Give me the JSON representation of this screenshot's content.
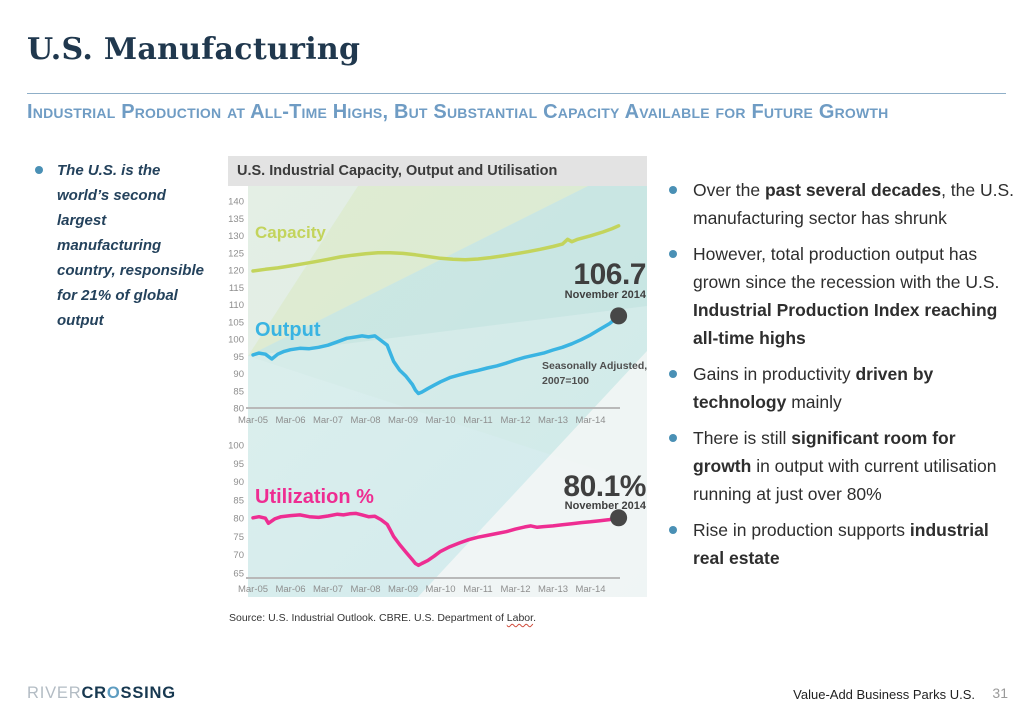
{
  "slide": {
    "title": "U.S. Manufacturing",
    "subtitle": "Industrial Production at All-Time Highs, But Substantial Capacity Available for Future Growth",
    "page_number": "31",
    "footer_right": "Value-Add Business Parks U.S.",
    "logo": {
      "part1": "RIVER",
      "part2a": "CR",
      "part2b": "O",
      "part2c": "SSING"
    },
    "accent_colors": {
      "subtitle_blue": "#6f9cc4",
      "bullet_teal": "#4a90b5",
      "title_navy": "#20384e"
    }
  },
  "left_column": {
    "bullet_text": "The U.S. is the world’s second largest manufacturing country, responsible for 21% of global output"
  },
  "right_column": {
    "bullets": [
      {
        "segments": [
          {
            "text": "Over the ",
            "bold": false
          },
          {
            "text": "past several decades",
            "bold": true
          },
          {
            "text": ", the U.S. manufacturing sector has shrunk",
            "bold": false
          }
        ]
      },
      {
        "segments": [
          {
            "text": "However, total production output has grown since the recession with the U.S. ",
            "bold": false
          },
          {
            "text": "Industrial Production Index reaching all-time highs",
            "bold": true
          }
        ]
      },
      {
        "segments": [
          {
            "text": "Gains in productivity ",
            "bold": false
          },
          {
            "text": "driven by technology",
            "bold": true
          },
          {
            "text": " mainly",
            "bold": false
          }
        ]
      },
      {
        "segments": [
          {
            "text": "There is still ",
            "bold": false
          },
          {
            "text": "significant room for growth",
            "bold": true
          },
          {
            "text": " in output with current utilisation running at just over 80%",
            "bold": false
          }
        ]
      },
      {
        "segments": [
          {
            "text": "Rise in production supports ",
            "bold": false
          },
          {
            "text": "industrial real estate",
            "bold": true
          }
        ]
      }
    ]
  },
  "source": {
    "prefix": "Source: U.S. Industrial Outlook. CBRE. U.S. Department of ",
    "underlined_word": "Labor",
    "suffix": "."
  },
  "chart_data": {
    "type": "line",
    "title": "U.S. Industrial Capacity, Output and Utilisation",
    "x_ticks": [
      "Mar-05",
      "Mar-06",
      "Mar-07",
      "Mar-08",
      "Mar-09",
      "Mar-10",
      "Mar-11",
      "Mar-12",
      "Mar-13",
      "Mar-14"
    ],
    "x_start_year": 2005.17,
    "marker_color": "#474747",
    "top_panel": {
      "ylim": [
        80,
        140
      ],
      "y_ticks": [
        140,
        135,
        130,
        125,
        120,
        115,
        110,
        105,
        100,
        95,
        90,
        85,
        80
      ],
      "note": [
        "Seasonally Adjusted,",
        "2007=100"
      ],
      "callout": {
        "value": "106.7",
        "date": "November 2014"
      },
      "series": [
        {
          "name": "Capacity",
          "color": "#c3d45c",
          "points": [
            [
              2005.17,
              119.7
            ],
            [
              2005.5,
              120.2
            ],
            [
              2005.83,
              120.6
            ],
            [
              2006.17,
              121.2
            ],
            [
              2006.5,
              121.8
            ],
            [
              2006.83,
              122.4
            ],
            [
              2007.17,
              123.1
            ],
            [
              2007.5,
              123.8
            ],
            [
              2007.83,
              124.3
            ],
            [
              2008.17,
              124.7
            ],
            [
              2008.5,
              125.0
            ],
            [
              2008.83,
              125.0
            ],
            [
              2009.17,
              124.8
            ],
            [
              2009.5,
              124.4
            ],
            [
              2009.83,
              123.9
            ],
            [
              2010.17,
              123.4
            ],
            [
              2010.5,
              123.1
            ],
            [
              2010.83,
              123.0
            ],
            [
              2011.17,
              123.2
            ],
            [
              2011.5,
              123.6
            ],
            [
              2011.83,
              124.1
            ],
            [
              2012.17,
              124.7
            ],
            [
              2012.5,
              125.3
            ],
            [
              2012.83,
              126.0
            ],
            [
              2013.17,
              126.8
            ],
            [
              2013.42,
              127.5
            ],
            [
              2013.56,
              128.9
            ],
            [
              2013.67,
              128.2
            ],
            [
              2013.83,
              128.9
            ],
            [
              2014.17,
              129.9
            ],
            [
              2014.5,
              131.0
            ],
            [
              2014.75,
              132.0
            ],
            [
              2014.92,
              132.8
            ]
          ]
        },
        {
          "name": "Output",
          "color": "#3ab4e2",
          "points": [
            [
              2005.17,
              95.4
            ],
            [
              2005.33,
              95.9
            ],
            [
              2005.5,
              95.6
            ],
            [
              2005.67,
              94.2
            ],
            [
              2005.83,
              95.6
            ],
            [
              2006.0,
              96.4
            ],
            [
              2006.17,
              96.9
            ],
            [
              2006.42,
              97.3
            ],
            [
              2006.67,
              97.2
            ],
            [
              2006.92,
              97.6
            ],
            [
              2007.17,
              98.2
            ],
            [
              2007.42,
              99.2
            ],
            [
              2007.67,
              100.2
            ],
            [
              2007.92,
              100.6
            ],
            [
              2008.08,
              100.9
            ],
            [
              2008.25,
              100.6
            ],
            [
              2008.42,
              100.9
            ],
            [
              2008.58,
              99.6
            ],
            [
              2008.75,
              98.2
            ],
            [
              2008.83,
              96.0
            ],
            [
              2008.92,
              93.5
            ],
            [
              2009.08,
              91.0
            ],
            [
              2009.25,
              89.2
            ],
            [
              2009.42,
              86.8
            ],
            [
              2009.5,
              85.2
            ],
            [
              2009.58,
              84.2
            ],
            [
              2009.67,
              84.6
            ],
            [
              2009.83,
              85.6
            ],
            [
              2010.0,
              86.6
            ],
            [
              2010.17,
              87.6
            ],
            [
              2010.42,
              88.8
            ],
            [
              2010.67,
              89.6
            ],
            [
              2010.92,
              90.3
            ],
            [
              2011.17,
              90.9
            ],
            [
              2011.42,
              91.6
            ],
            [
              2011.67,
              92.2
            ],
            [
              2011.92,
              93.0
            ],
            [
              2012.17,
              93.9
            ],
            [
              2012.42,
              94.7
            ],
            [
              2012.67,
              95.3
            ],
            [
              2012.92,
              95.9
            ],
            [
              2013.17,
              96.8
            ],
            [
              2013.42,
              97.6
            ],
            [
              2013.67,
              98.6
            ],
            [
              2013.92,
              99.8
            ],
            [
              2014.17,
              101.2
            ],
            [
              2014.42,
              102.8
            ],
            [
              2014.67,
              104.4
            ],
            [
              2014.83,
              105.8
            ],
            [
              2014.92,
              106.7
            ]
          ]
        }
      ]
    },
    "bottom_panel": {
      "ylim": [
        65,
        100
      ],
      "y_ticks": [
        100,
        95,
        90,
        85,
        80,
        75,
        70,
        65
      ],
      "callout": {
        "value": "80.1%",
        "date": "November 2014"
      },
      "series": [
        {
          "name": "Utilization %",
          "color": "#ee2d92",
          "points": [
            [
              2005.17,
              80.1
            ],
            [
              2005.33,
              80.4
            ],
            [
              2005.5,
              80.0
            ],
            [
              2005.58,
              78.6
            ],
            [
              2005.75,
              79.8
            ],
            [
              2005.92,
              80.4
            ],
            [
              2006.17,
              80.7
            ],
            [
              2006.42,
              80.9
            ],
            [
              2006.67,
              80.4
            ],
            [
              2006.92,
              80.2
            ],
            [
              2007.17,
              80.6
            ],
            [
              2007.42,
              81.1
            ],
            [
              2007.58,
              80.9
            ],
            [
              2007.75,
              81.2
            ],
            [
              2007.92,
              81.3
            ],
            [
              2008.08,
              80.9
            ],
            [
              2008.25,
              80.4
            ],
            [
              2008.42,
              80.5
            ],
            [
              2008.58,
              79.6
            ],
            [
              2008.75,
              78.3
            ],
            [
              2008.83,
              76.8
            ],
            [
              2008.92,
              75.0
            ],
            [
              2009.08,
              72.8
            ],
            [
              2009.25,
              70.7
            ],
            [
              2009.42,
              68.6
            ],
            [
              2009.5,
              67.6
            ],
            [
              2009.58,
              67.1
            ],
            [
              2009.67,
              67.6
            ],
            [
              2009.83,
              68.4
            ],
            [
              2010.0,
              69.6
            ],
            [
              2010.17,
              70.9
            ],
            [
              2010.42,
              72.2
            ],
            [
              2010.67,
              73.2
            ],
            [
              2010.92,
              74.1
            ],
            [
              2011.17,
              74.8
            ],
            [
              2011.42,
              75.3
            ],
            [
              2011.67,
              75.8
            ],
            [
              2011.92,
              76.3
            ],
            [
              2012.17,
              77.0
            ],
            [
              2012.42,
              77.6
            ],
            [
              2012.58,
              77.9
            ],
            [
              2012.75,
              77.5
            ],
            [
              2012.92,
              77.7
            ],
            [
              2013.17,
              77.9
            ],
            [
              2013.42,
              78.2
            ],
            [
              2013.67,
              78.5
            ],
            [
              2013.92,
              78.8
            ],
            [
              2014.17,
              79.0
            ],
            [
              2014.42,
              79.3
            ],
            [
              2014.67,
              79.6
            ],
            [
              2014.83,
              79.9
            ],
            [
              2014.92,
              80.1
            ]
          ]
        }
      ]
    }
  }
}
